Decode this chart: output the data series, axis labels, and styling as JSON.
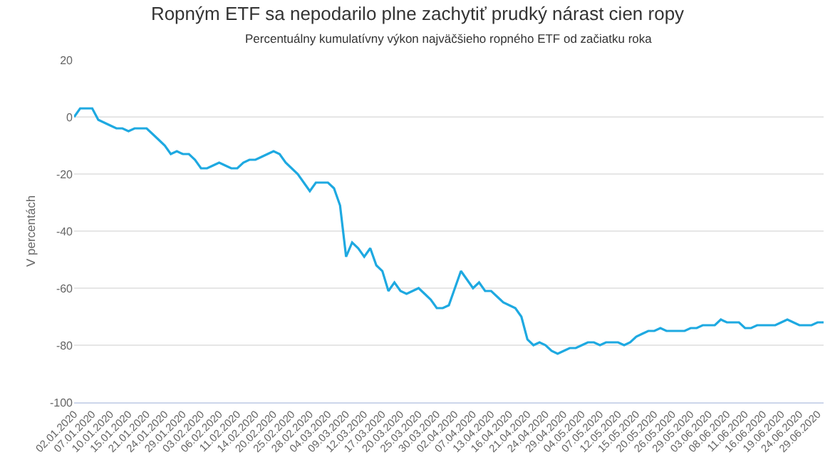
{
  "chart_data": {
    "type": "line",
    "title": "Ropným ETF sa nepodarilo plne zachytiť prudký nárast cien ropy",
    "subtitle": "Percentuálny kumulatívny výkon najväčšieho ropného ETF od začiatku roka",
    "ylabel": "V percentách",
    "categories": [
      "02.01.2020",
      null,
      null,
      "07.01.2020",
      null,
      null,
      "10.01.2020",
      null,
      null,
      "15.01.2020",
      null,
      null,
      "21.01.2020",
      null,
      null,
      "24.01.2020",
      null,
      null,
      "29.01.2020",
      null,
      null,
      "03.02.2020",
      null,
      null,
      "06.02.2020",
      null,
      null,
      "11.02.2020",
      null,
      null,
      "14.02.2020",
      null,
      null,
      "20.02.2020",
      null,
      null,
      "25.02.2020",
      null,
      null,
      "28.02.2020",
      null,
      null,
      "04.03.2020",
      null,
      null,
      "09.03.2020",
      null,
      null,
      "12.03.2020",
      null,
      null,
      "17.03.2020",
      null,
      null,
      "20.03.2020",
      null,
      null,
      "25.03.2020",
      null,
      null,
      "30.03.2020",
      null,
      null,
      "02.04.2020",
      null,
      null,
      "07.04.2020",
      null,
      null,
      "13.04.2020",
      null,
      null,
      "16.04.2020",
      null,
      null,
      "21.04.2020",
      null,
      null,
      "24.04.2020",
      null,
      null,
      "29.04.2020",
      null,
      null,
      "04.05.2020",
      null,
      null,
      "07.05.2020",
      null,
      null,
      "12.05.2020",
      null,
      null,
      "15.05.2020",
      null,
      null,
      "20.05.2020",
      null,
      null,
      "26.05.2020",
      null,
      null,
      "29.05.2020",
      null,
      null,
      "03.06.2020",
      null,
      null,
      "08.06.2020",
      null,
      null,
      "11.06.2020",
      null,
      null,
      "16.06.2020",
      null,
      null,
      "19.06.2020",
      null,
      null,
      "24.06.2020",
      null,
      null,
      "29.06.2020",
      null
    ],
    "series": [
      {
        "color": "#1ea9e1",
        "values": [
          0,
          3,
          3,
          3,
          -1,
          -2,
          -3,
          -4,
          -4,
          -5,
          -4,
          -4,
          -4,
          -6,
          -8,
          -10,
          -13,
          -12,
          -13,
          -13,
          -15,
          -18,
          -18,
          -17,
          -16,
          -17,
          -18,
          -18,
          -16,
          -15,
          -15,
          -14,
          -13,
          -12,
          -13,
          -16,
          -18,
          -20,
          -23,
          -26,
          -23,
          -23,
          -23,
          -25,
          -31,
          -49,
          -44,
          -46,
          -49,
          -46,
          -52,
          -54,
          -61,
          -58,
          -61,
          -62,
          -61,
          -60,
          -62,
          -64,
          -67,
          -67,
          -66,
          -60,
          -54,
          -57,
          -60,
          -58,
          -61,
          -61,
          -63,
          -65,
          -66,
          -67,
          -70,
          -78,
          -80,
          -79,
          -80,
          -82,
          -83,
          -82,
          -81,
          -81,
          -80,
          -79,
          -79,
          -80,
          -79,
          -79,
          -79,
          -80,
          -79,
          -77,
          -76,
          -75,
          -75,
          -74,
          -75,
          -75,
          -75,
          -75,
          -74,
          -74,
          -73,
          -73,
          -73,
          -71,
          -72,
          -72,
          -72,
          -74,
          -74,
          -73,
          -73,
          -73,
          -73,
          -72,
          -71,
          -72,
          -73,
          -73,
          -73,
          -72,
          -72
        ]
      }
    ],
    "ylim": [
      -100,
      20
    ],
    "yticks": [
      -100,
      -80,
      -60,
      -40,
      -20,
      0,
      20
    ],
    "grid": "y",
    "marker": "none",
    "line_style": "solid"
  }
}
